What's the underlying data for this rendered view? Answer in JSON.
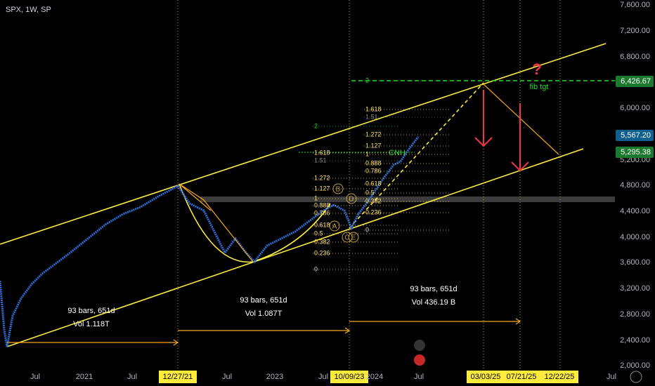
{
  "header": {
    "title": "SPX, 1W, SP"
  },
  "price_axis": {
    "labels": [
      "7,600.00",
      "7,200.00",
      "6,800.00",
      "6,000.00",
      "5,200.00",
      "4,800.00",
      "4,400.00",
      "4,000.00",
      "3,600.00",
      "3,200.00",
      "2,800.00",
      "2,400.00",
      "2,000.00"
    ]
  },
  "price_tags": [
    "6,426.67",
    "5,567.20",
    "5,295.38"
  ],
  "time_axis": {
    "labels": [
      "Jul",
      "2021",
      "Jul",
      "12/27/21",
      "Jul",
      "2023",
      "Jul",
      "10/09/23",
      "2024",
      "Jul",
      "03/03/25",
      "07/21/25",
      "12/22/25",
      "Jul"
    ]
  },
  "measurements": [
    {
      "bars": "93 bars, 651d",
      "volume": "Vol 1.118T"
    },
    {
      "bars": "93 bars, 651d",
      "volume": "Vol 1.087T"
    },
    {
      "bars": "93 bars, 651d",
      "volume": "Vol 436.19 B"
    }
  ],
  "fib_right": [
    "2",
    "1.618",
    "1.51",
    "1.272",
    "1.127",
    "1",
    "0.888",
    "0.786",
    "0.618",
    "0.5",
    "0.382",
    "0.236",
    "0"
  ],
  "fib_left": [
    "2",
    "1.618",
    "1.51",
    "1.272",
    "1.127",
    "1",
    "0.888",
    "0.786",
    "0.618",
    "0.5",
    "0.382",
    "0.236",
    "0"
  ],
  "pattern_points": [
    "A",
    "B",
    "C",
    "D",
    "E"
  ],
  "annotations": {
    "target": "fib tgt",
    "question": "?",
    "symbol": "CNH"
  }
}
